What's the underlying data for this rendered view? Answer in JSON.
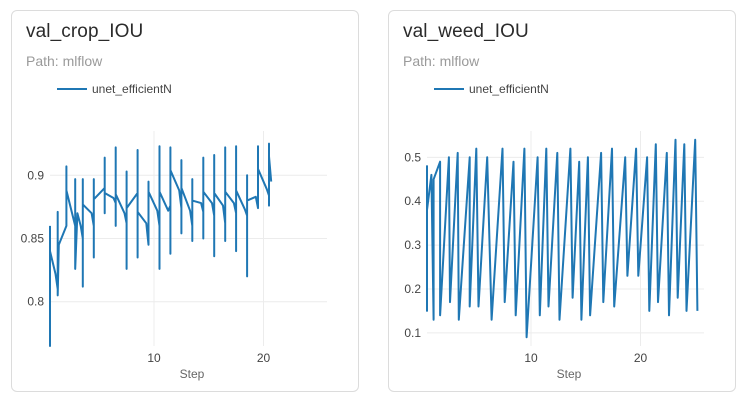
{
  "cards": [
    {
      "id": "crop",
      "title": "val_crop_IOU",
      "path_text": "Path: mlflow",
      "chart_data": {
        "type": "line",
        "title": "val_crop_IOU",
        "xlabel": "Step",
        "ylabel": "",
        "xlim": [
          0.5,
          25.8
        ],
        "ylim": [
          0.765,
          0.935
        ],
        "xticks": [
          10,
          20
        ],
        "yticks": [
          0.8,
          0.85,
          0.9
        ],
        "ytick_labels": [
          "0.8",
          "0.85",
          "0.9"
        ],
        "grid": true,
        "legend_position": "top-left",
        "series": [
          {
            "name": "unet_efficientN",
            "color": "#1f77b4",
            "points": [
              [
                0.5,
                0.86
              ],
              [
                0.5,
                0.765
              ],
              [
                0.5,
                0.84
              ],
              [
                1.0,
                0.822
              ],
              [
                1.2,
                0.81
              ],
              [
                1.2,
                0.871
              ],
              [
                1.2,
                0.805
              ],
              [
                1.3,
                0.845
              ],
              [
                2.0,
                0.86
              ],
              [
                2.0,
                0.907
              ],
              [
                2.0,
                0.888
              ],
              [
                2.8,
                0.86
              ],
              [
                2.8,
                0.897
              ],
              [
                2.8,
                0.826
              ],
              [
                3.0,
                0.87
              ],
              [
                3.3,
                0.86
              ],
              [
                3.5,
                0.85
              ],
              [
                3.5,
                0.897
              ],
              [
                3.5,
                0.812
              ],
              [
                3.5,
                0.877
              ],
              [
                4.3,
                0.87
              ],
              [
                4.5,
                0.86
              ],
              [
                4.5,
                0.897
              ],
              [
                4.5,
                0.835
              ],
              [
                4.5,
                0.881
              ],
              [
                5.5,
                0.89
              ],
              [
                5.5,
                0.914
              ],
              [
                5.5,
                0.87
              ],
              [
                5.5,
                0.886
              ],
              [
                6.3,
                0.882
              ],
              [
                6.5,
                0.878
              ],
              [
                6.5,
                0.922
              ],
              [
                6.5,
                0.86
              ],
              [
                6.5,
                0.885
              ],
              [
                7.3,
                0.87
              ],
              [
                7.5,
                0.862
              ],
              [
                7.5,
                0.903
              ],
              [
                7.5,
                0.826
              ],
              [
                7.5,
                0.874
              ],
              [
                8.5,
                0.886
              ],
              [
                8.5,
                0.92
              ],
              [
                8.5,
                0.835
              ],
              [
                8.5,
                0.871
              ],
              [
                9.3,
                0.862
              ],
              [
                9.5,
                0.845
              ],
              [
                9.5,
                0.895
              ],
              [
                9.5,
                0.859
              ],
              [
                9.5,
                0.887
              ],
              [
                10.3,
                0.872
              ],
              [
                10.5,
                0.86
              ],
              [
                10.5,
                0.923
              ],
              [
                10.5,
                0.826
              ],
              [
                10.5,
                0.887
              ],
              [
                11.3,
                0.872
              ],
              [
                11.5,
                0.876
              ],
              [
                11.5,
                0.922
              ],
              [
                11.5,
                0.838
              ],
              [
                11.5,
                0.904
              ],
              [
                12.3,
                0.888
              ],
              [
                12.5,
                0.874
              ],
              [
                12.5,
                0.912
              ],
              [
                12.5,
                0.854
              ],
              [
                12.5,
                0.89
              ],
              [
                13.3,
                0.872
              ],
              [
                13.5,
                0.86
              ],
              [
                13.5,
                0.897
              ],
              [
                13.5,
                0.848
              ],
              [
                13.5,
                0.88
              ],
              [
                14.3,
                0.878
              ],
              [
                14.5,
                0.871
              ],
              [
                14.5,
                0.914
              ],
              [
                14.5,
                0.85
              ],
              [
                14.5,
                0.887
              ],
              [
                15.3,
                0.878
              ],
              [
                15.5,
                0.868
              ],
              [
                15.5,
                0.916
              ],
              [
                15.5,
                0.836
              ],
              [
                15.5,
                0.886
              ],
              [
                16.3,
                0.876
              ],
              [
                16.5,
                0.862
              ],
              [
                16.5,
                0.922
              ],
              [
                16.5,
                0.848
              ],
              [
                16.5,
                0.887
              ],
              [
                17.3,
                0.878
              ],
              [
                17.5,
                0.87
              ],
              [
                17.5,
                0.923
              ],
              [
                17.5,
                0.84
              ],
              [
                17.5,
                0.888
              ],
              [
                18.3,
                0.873
              ],
              [
                18.5,
                0.868
              ],
              [
                18.5,
                0.9
              ],
              [
                18.5,
                0.82
              ],
              [
                18.5,
                0.88
              ],
              [
                19.3,
                0.883
              ],
              [
                19.5,
                0.874
              ],
              [
                19.5,
                0.923
              ],
              [
                19.5,
                0.882
              ],
              [
                19.5,
                0.905
              ],
              [
                20.3,
                0.889
              ],
              [
                20.5,
                0.884
              ],
              [
                20.5,
                0.925
              ],
              [
                20.5,
                0.876
              ],
              [
                20.5,
                0.915
              ],
              [
                20.7,
                0.895
              ]
            ]
          }
        ]
      }
    },
    {
      "id": "weed",
      "title": "val_weed_IOU",
      "path_text": "Path: mlflow",
      "chart_data": {
        "type": "line",
        "title": "val_weed_IOU",
        "xlabel": "Step",
        "ylabel": "",
        "xlim": [
          0.5,
          25.8
        ],
        "ylim": [
          0.07,
          0.56
        ],
        "xticks": [
          10,
          20
        ],
        "yticks": [
          0.1,
          0.2,
          0.3,
          0.4,
          0.5
        ],
        "ytick_labels": [
          "0.1",
          "0.2",
          "0.3",
          "0.4",
          "0.5"
        ],
        "grid": true,
        "legend_position": "top-left",
        "series": [
          {
            "name": "unet_efficientN",
            "color": "#1f77b4",
            "points": [
              [
                0.5,
                0.2
              ],
              [
                0.5,
                0.15
              ],
              [
                0.5,
                0.48
              ],
              [
                0.5,
                0.38
              ],
              [
                0.9,
                0.46
              ],
              [
                1.1,
                0.13
              ],
              [
                1.1,
                0.45
              ],
              [
                1.7,
                0.49
              ],
              [
                1.7,
                0.14
              ],
              [
                2.5,
                0.5
              ],
              [
                2.6,
                0.17
              ],
              [
                3.3,
                0.51
              ],
              [
                3.4,
                0.13
              ],
              [
                4.4,
                0.5
              ],
              [
                4.4,
                0.16
              ],
              [
                5.0,
                0.52
              ],
              [
                5.2,
                0.16
              ],
              [
                6.0,
                0.5
              ],
              [
                6.4,
                0.13
              ],
              [
                7.4,
                0.52
              ],
              [
                7.6,
                0.17
              ],
              [
                8.4,
                0.49
              ],
              [
                8.6,
                0.14
              ],
              [
                9.4,
                0.52
              ],
              [
                9.6,
                0.09
              ],
              [
                10.6,
                0.5
              ],
              [
                10.8,
                0.14
              ],
              [
                11.4,
                0.52
              ],
              [
                11.6,
                0.16
              ],
              [
                12.4,
                0.51
              ],
              [
                12.6,
                0.13
              ],
              [
                13.6,
                0.52
              ],
              [
                13.8,
                0.18
              ],
              [
                14.4,
                0.49
              ],
              [
                14.6,
                0.13
              ],
              [
                15.2,
                0.5
              ],
              [
                15.4,
                0.14
              ],
              [
                16.4,
                0.51
              ],
              [
                16.6,
                0.17
              ],
              [
                17.4,
                0.52
              ],
              [
                17.6,
                0.16
              ],
              [
                18.6,
                0.5
              ],
              [
                18.8,
                0.23
              ],
              [
                19.6,
                0.52
              ],
              [
                19.8,
                0.23
              ],
              [
                20.6,
                0.5
              ],
              [
                20.8,
                0.15
              ],
              [
                21.4,
                0.53
              ],
              [
                21.6,
                0.17
              ],
              [
                22.4,
                0.51
              ],
              [
                22.6,
                0.14
              ],
              [
                23.2,
                0.54
              ],
              [
                23.4,
                0.18
              ],
              [
                24.0,
                0.53
              ],
              [
                24.2,
                0.15
              ],
              [
                25.0,
                0.54
              ],
              [
                25.2,
                0.15
              ]
            ]
          }
        ]
      }
    }
  ]
}
